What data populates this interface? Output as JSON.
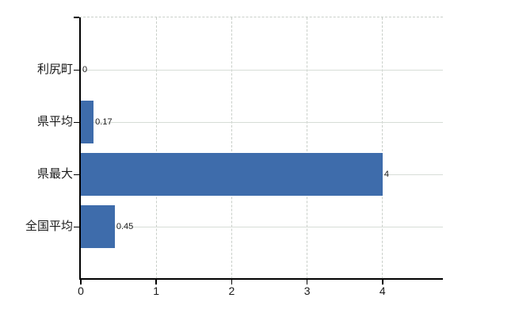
{
  "chart_data": {
    "type": "bar",
    "orientation": "horizontal",
    "title": "",
    "xlabel": "",
    "ylabel": "",
    "categories": [
      "利尻町",
      "県平均",
      "県最大",
      "全国平均"
    ],
    "values": [
      0,
      0.17,
      4,
      0.45
    ],
    "value_labels": [
      "0",
      "0.17",
      "4",
      "0.45"
    ],
    "xticks": [
      0,
      1,
      2,
      3,
      4
    ],
    "xtick_labels": [
      "0",
      "1",
      "2",
      "3",
      "4"
    ],
    "xlim": [
      0,
      4.8
    ],
    "grid": true,
    "legend": false,
    "colors": {
      "bar": "#3e6cab",
      "h_gridline": "#d7ddd7",
      "v_gridline": "#c9cfc9",
      "top_border": "#c9cfc9",
      "axis": "#000000",
      "text": "#1a1a1a",
      "background": "#ffffff"
    }
  }
}
